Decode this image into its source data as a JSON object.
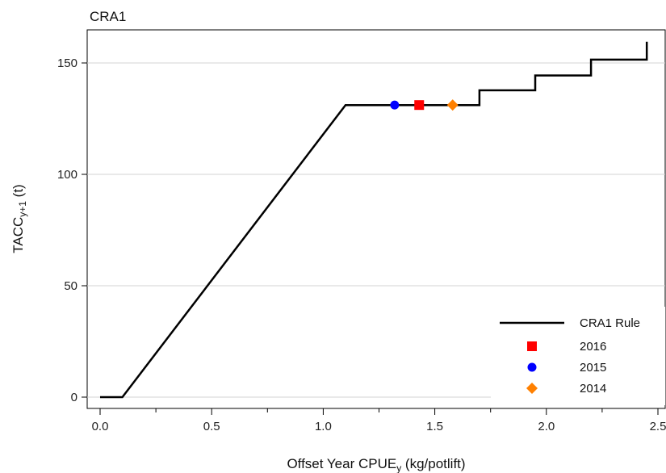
{
  "chart_data": {
    "type": "line",
    "title": "CRA1",
    "xlabel": {
      "base": "Offset Year CPUE",
      "sub": "y",
      "unit": " (kg/potlift)"
    },
    "ylabel": {
      "base": "TACC",
      "sub": "y+1",
      "unit": " (t)"
    },
    "xlim": [
      0,
      2.5
    ],
    "ylim": [
      0,
      160
    ],
    "x_ticks": [
      0.0,
      0.5,
      1.0,
      1.5,
      2.0,
      2.5
    ],
    "x_tick_labels": [
      "0.0",
      "0.5",
      "1.0",
      "1.5",
      "2.0",
      "2.5"
    ],
    "y_ticks": [
      0,
      50,
      100,
      150
    ],
    "y_tick_labels": [
      "0",
      "50",
      "100",
      "150"
    ],
    "grid": "horizontal",
    "legend_position": "bottom-right",
    "series": [
      {
        "name": "CRA1 Rule",
        "type": "line",
        "color": "#000000",
        "x": [
          0.0,
          0.1,
          1.1,
          1.7,
          1.7,
          1.95,
          1.95,
          2.2,
          2.2,
          2.45,
          2.45
        ],
        "y": [
          0,
          0,
          131.1,
          131.1,
          137.7,
          137.7,
          144.4,
          144.4,
          151.5,
          151.5,
          159.5
        ]
      },
      {
        "name": "2016",
        "type": "point",
        "marker": "square",
        "color": "#ff0000",
        "x": [
          1.43
        ],
        "y": [
          131.1
        ]
      },
      {
        "name": "2015",
        "type": "point",
        "marker": "circle",
        "color": "#0000ff",
        "x": [
          1.32
        ],
        "y": [
          131.1
        ]
      },
      {
        "name": "2014",
        "type": "point",
        "marker": "diamond",
        "color": "#ff8000",
        "x": [
          1.58
        ],
        "y": [
          131.1
        ]
      }
    ]
  }
}
